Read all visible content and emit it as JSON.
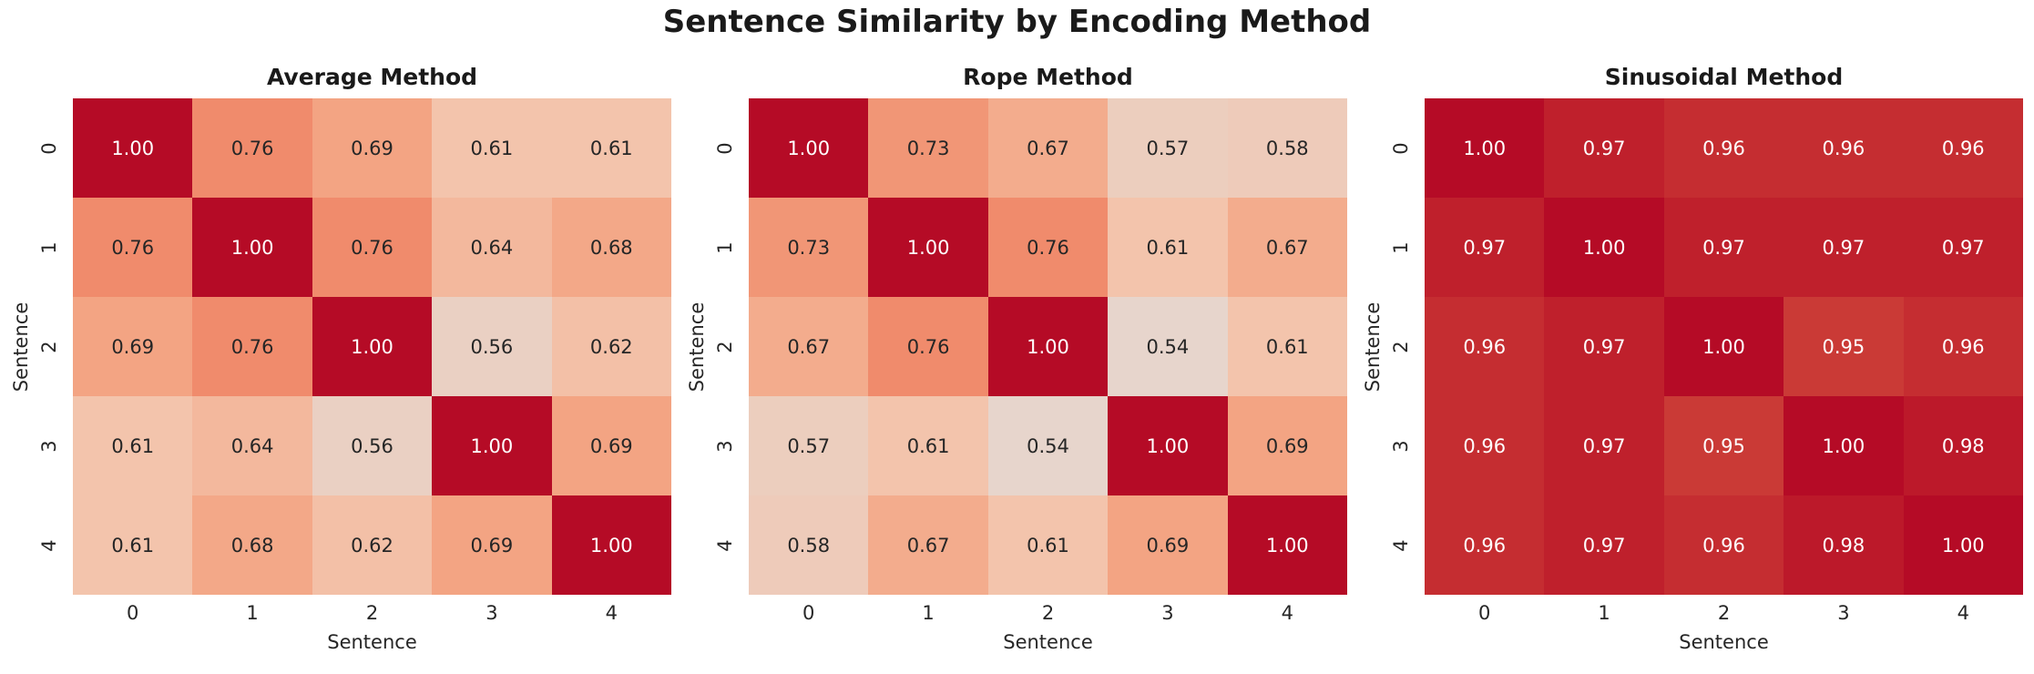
{
  "figure": {
    "title": "Sentence Similarity by Encoding Method",
    "background": "#ffffff",
    "text_color": "#262626",
    "title_color": "#1a1a1a"
  },
  "chart_data": [
    {
      "type": "heatmap",
      "title": "Average Method",
      "xlabel": "Sentence",
      "ylabel": "Sentence",
      "x_ticks": [
        "0",
        "1",
        "2",
        "3",
        "4"
      ],
      "y_ticks": [
        "0",
        "1",
        "2",
        "3",
        "4"
      ],
      "vmin": 0.0,
      "vmax": 1.0,
      "decimals": 2,
      "values": [
        [
          1.0,
          0.76,
          0.69,
          0.61,
          0.61
        ],
        [
          0.76,
          1.0,
          0.76,
          0.64,
          0.68
        ],
        [
          0.69,
          0.76,
          1.0,
          0.56,
          0.62
        ],
        [
          0.61,
          0.64,
          0.56,
          1.0,
          0.69
        ],
        [
          0.61,
          0.68,
          0.62,
          0.69,
          1.0
        ]
      ]
    },
    {
      "type": "heatmap",
      "title": "Rope Method",
      "xlabel": "Sentence",
      "ylabel": "Sentence",
      "x_ticks": [
        "0",
        "1",
        "2",
        "3",
        "4"
      ],
      "y_ticks": [
        "0",
        "1",
        "2",
        "3",
        "4"
      ],
      "vmin": 0.0,
      "vmax": 1.0,
      "decimals": 2,
      "values": [
        [
          1.0,
          0.73,
          0.67,
          0.57,
          0.58
        ],
        [
          0.73,
          1.0,
          0.76,
          0.61,
          0.67
        ],
        [
          0.67,
          0.76,
          1.0,
          0.54,
          0.61
        ],
        [
          0.57,
          0.61,
          0.54,
          1.0,
          0.69
        ],
        [
          0.58,
          0.67,
          0.61,
          0.69,
          1.0
        ]
      ]
    },
    {
      "type": "heatmap",
      "title": "Sinusoidal Method",
      "xlabel": "Sentence",
      "ylabel": "Sentence",
      "x_ticks": [
        "0",
        "1",
        "2",
        "3",
        "4"
      ],
      "y_ticks": [
        "0",
        "1",
        "2",
        "3",
        "4"
      ],
      "vmin": 0.0,
      "vmax": 1.0,
      "decimals": 2,
      "values": [
        [
          1.0,
          0.97,
          0.96,
          0.96,
          0.96
        ],
        [
          0.97,
          1.0,
          0.97,
          0.97,
          0.97
        ],
        [
          0.96,
          0.97,
          1.0,
          0.95,
          0.96
        ],
        [
          0.96,
          0.97,
          0.95,
          1.0,
          0.98
        ],
        [
          0.96,
          0.97,
          0.96,
          0.98,
          1.0
        ]
      ]
    }
  ],
  "palette": {
    "name": "red-warm-sequential",
    "annot_dark": "#262626",
    "annot_light": "#ffffff",
    "stops": [
      {
        "v": 0.5,
        "hex": "#dddcdc"
      },
      {
        "v": 0.54,
        "hex": "#e7d5cc"
      },
      {
        "v": 0.61,
        "hex": "#f3c4ac"
      },
      {
        "v": 0.69,
        "hex": "#f3a483"
      },
      {
        "v": 0.76,
        "hex": "#f08b6c"
      },
      {
        "v": 0.86,
        "hex": "#e05a4a"
      },
      {
        "v": 0.95,
        "hex": "#ca3a36"
      },
      {
        "v": 0.97,
        "hex": "#bf202c"
      },
      {
        "v": 1.0,
        "hex": "#b50b26"
      }
    ]
  }
}
